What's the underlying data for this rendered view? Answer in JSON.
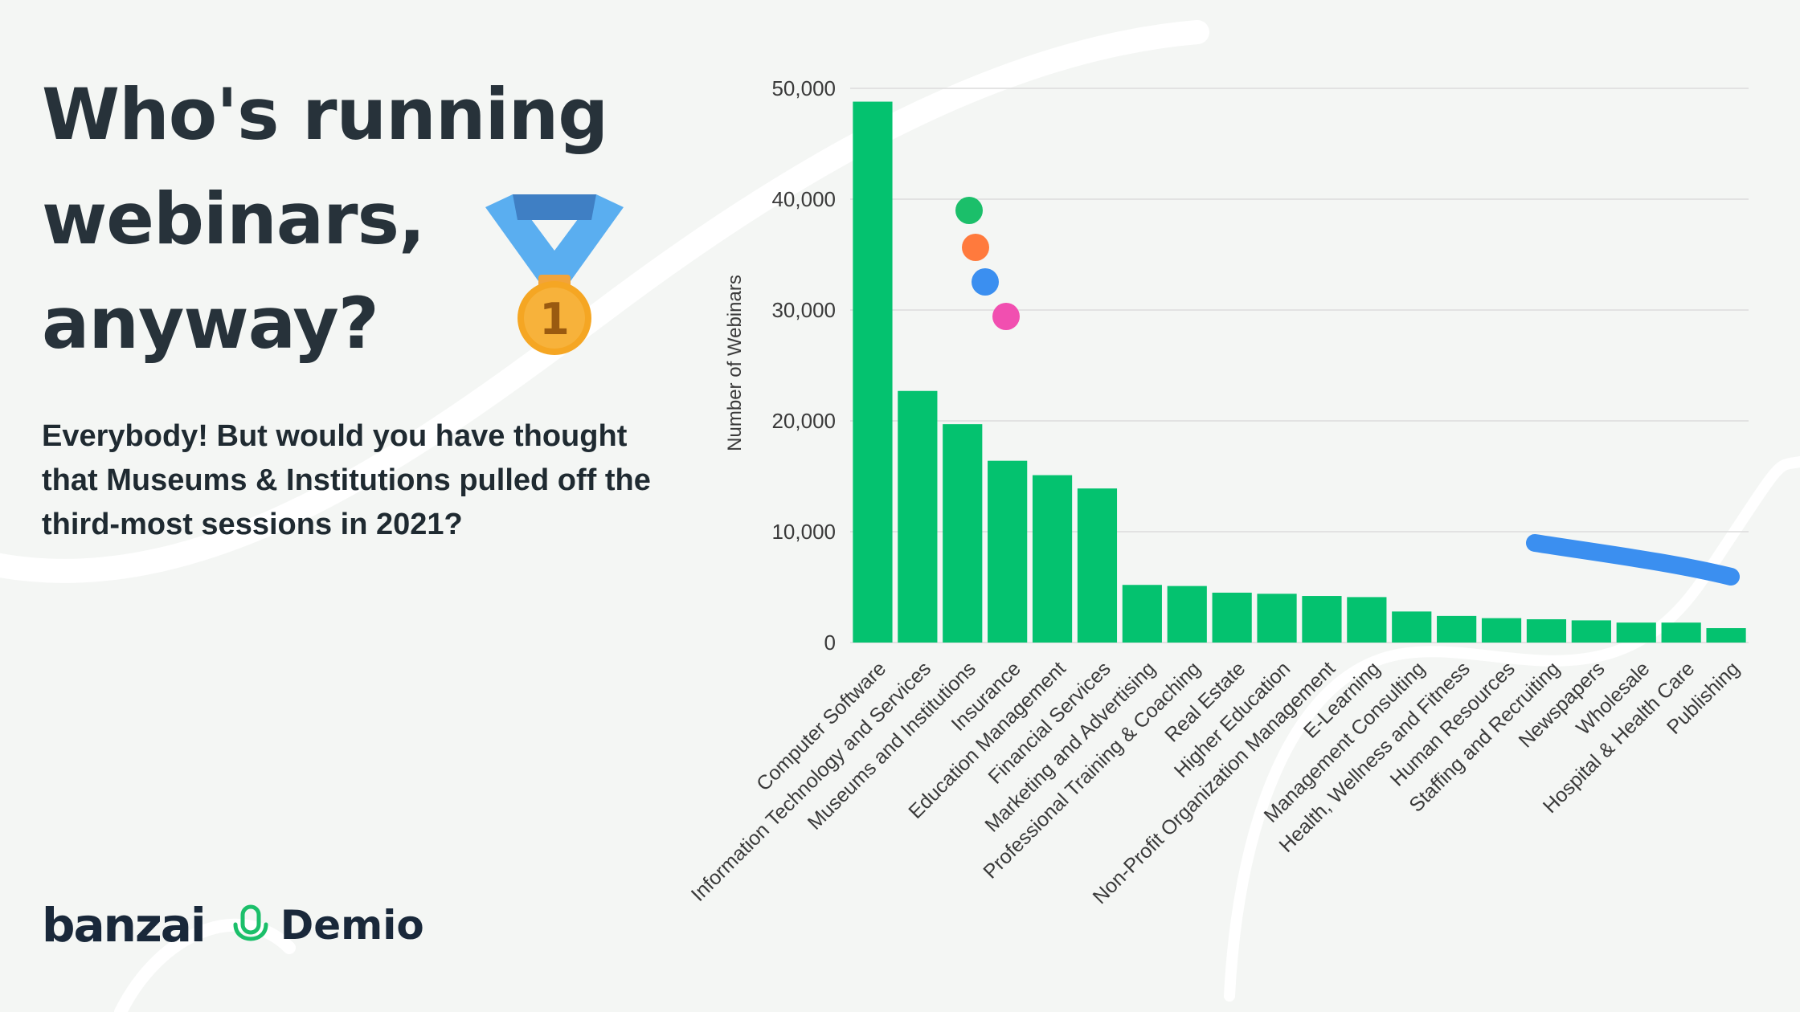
{
  "headline": {
    "line1": "Who's running",
    "line2": "webinars,",
    "line3": "anyway?"
  },
  "subtext": "Everybody! But would you have thought that Museums & Institutions pulled off the third-most sessions in 2021?",
  "medal_icon": "first-place-medal-icon",
  "logos": {
    "banzai": "banzai",
    "demio": "Demio"
  },
  "colors": {
    "bar": "#04c26f",
    "text_dark": "#27323a",
    "background": "#f4f6f4",
    "dot_green": "#1bbf6a",
    "dot_orange": "#ff7a3d",
    "dot_blue": "#3b8ff0",
    "dot_pink": "#f14fb0",
    "stroke_blue": "#3b8ff0"
  },
  "chart_data": {
    "type": "bar",
    "ylabel": "Number of  Webinars",
    "xlabel": "",
    "ylim": [
      0,
      50000
    ],
    "yticks": [
      0,
      10000,
      20000,
      30000,
      40000,
      50000
    ],
    "ytick_labels": [
      "0",
      "10,000",
      "20,000",
      "30,000",
      "40,000",
      "50,000"
    ],
    "grid": true,
    "categories": [
      "Computer Software",
      "Information Technology and Services",
      "Museums and Institutions",
      "Insurance",
      "Education Management",
      "Financial Services",
      "Marketing and Advertising",
      "Professional Training & Coaching",
      "Real Estate",
      "Higher Education",
      "Non-Profit Organization Management",
      "E-Learning",
      "Management Consulting",
      "Health, Wellness and Fitness",
      "Human Resources",
      "Staffing and Recruiting",
      "Newspapers",
      "Wholesale",
      "Hospital & Health Care",
      "Publishing"
    ],
    "values": [
      48800,
      22700,
      19700,
      16400,
      15100,
      13900,
      5200,
      5100,
      4500,
      4400,
      4200,
      4100,
      2800,
      2400,
      2200,
      2100,
      2000,
      1800,
      1800,
      1300
    ]
  }
}
